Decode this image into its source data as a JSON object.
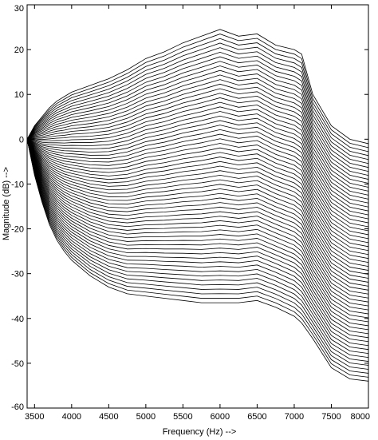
{
  "chart_data": {
    "type": "line",
    "title": "",
    "xlabel": "Frequency (Hz) -->",
    "ylabel": "Magnitude (dB) -->",
    "xlim": [
      3400,
      8000
    ],
    "ylim": [
      -60,
      30
    ],
    "x_ticks": [
      3500,
      4000,
      4500,
      5000,
      5500,
      6000,
      6500,
      7000,
      7500,
      8000
    ],
    "y_ticks": [
      30,
      20,
      10,
      0,
      -10,
      -20,
      -30,
      -40,
      -50,
      -60
    ],
    "grid": false,
    "legend": "none",
    "line_color": "#000000",
    "series_count": 61,
    "x": [
      3400,
      3500,
      3600,
      3700,
      3800,
      3900,
      4000,
      4250,
      4500,
      4750,
      5000,
      5250,
      5500,
      5750,
      6000,
      6250,
      6500,
      6750,
      7000,
      7100,
      7250,
      7500,
      7750,
      8000
    ],
    "top_series": {
      "values": [
        0,
        3,
        5,
        7,
        8.5,
        9.5,
        10.5,
        12,
        13.5,
        15.5,
        18,
        19.5,
        21.5,
        23,
        24.5,
        23,
        23.5,
        21,
        20,
        19,
        10,
        3,
        0,
        -1
      ]
    },
    "bottom_series": {
      "values": [
        0,
        -8,
        -14,
        -19,
        -22.5,
        -25,
        -27,
        -30.5,
        -33,
        -34.5,
        -35,
        -35.5,
        -36,
        -36.5,
        -36.5,
        -36.5,
        -36,
        -37.5,
        -39.5,
        -41,
        -44.5,
        -51,
        -53.5,
        -54
      ]
    }
  }
}
